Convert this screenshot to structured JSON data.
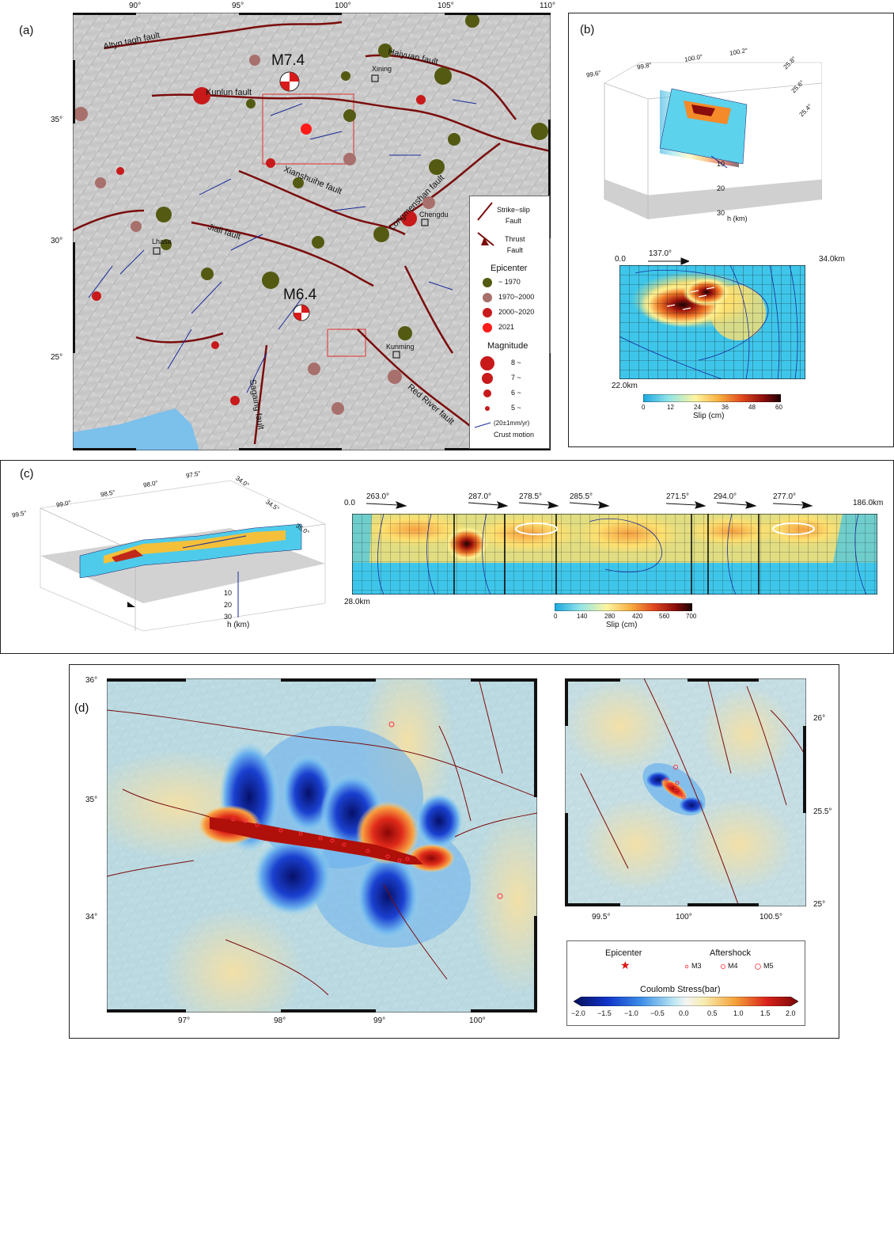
{
  "panel_a": {
    "label": "(a)",
    "lon_ticks": [
      "90°",
      "95°",
      "100°",
      "105°",
      "110°"
    ],
    "lat_ticks": [
      "35°",
      "30°",
      "25°"
    ],
    "events": [
      "M7.4",
      "M6.4"
    ],
    "faults": [
      "Altyn tagh fault",
      "Kunlun fault",
      "Haiyuan fault",
      "Xianshuihe fault",
      "Longmenshan fault",
      "Jiali fault",
      "Sagaing fault",
      "Red River fault"
    ],
    "cities": [
      "Xining",
      "Chengdu",
      "Lhasa",
      "Kunming"
    ],
    "legend": {
      "strike_slip": [
        "Strike−slip",
        "Fault"
      ],
      "thrust": [
        "Thrust",
        "Fault"
      ],
      "epicenter_title": "Epicenter",
      "epicenter_items": [
        "~ 1970",
        "1970~2000",
        "2000~2020",
        "2021"
      ],
      "epicenter_colors": [
        "#545a12",
        "#a8706c",
        "#c81a1a",
        "#ff1a1a"
      ],
      "magnitude_title": "Magnitude",
      "magnitude_items": [
        "8 ~",
        "7 ~",
        "6 ~",
        "5 ~"
      ],
      "crust": [
        "(20±1mm/yr)",
        "Crust motion"
      ]
    }
  },
  "panel_b": {
    "label": "(b)",
    "box_lon": [
      "99.6°",
      "99.8°",
      "100.0°",
      "100.2°"
    ],
    "box_lat": [
      "25.8°",
      "25.6°",
      "25.4°"
    ],
    "depth_ticks": [
      "10",
      "20",
      "30"
    ],
    "depth_label": "h (km)",
    "strike": "137.0°",
    "start": "0.0",
    "length": "34.0km",
    "width": "22.0km",
    "colorbar_ticks": [
      "0",
      "12",
      "24",
      "36",
      "48",
      "60"
    ],
    "colorbar_label": "Slip (cm)"
  },
  "panel_c": {
    "label": "(c)",
    "box_lon": [
      "99.5°",
      "99.0°",
      "98.5°",
      "98.0°",
      "97.5°"
    ],
    "box_lat": [
      "34.0°",
      "34.5°",
      "35.0°"
    ],
    "depth_ticks": [
      "10",
      "20",
      "30"
    ],
    "depth_label": "h (km)",
    "strikes": [
      "263.0°",
      "287.0°",
      "278.5°",
      "285.5°",
      "271.5°",
      "294.0°",
      "277.0°"
    ],
    "start": "0.0",
    "length": "186.0km",
    "width": "28.0km",
    "colorbar_ticks": [
      "0",
      "140",
      "280",
      "420",
      "560",
      "700"
    ],
    "colorbar_label": "Slip (cm)"
  },
  "panel_d": {
    "label": "(d)",
    "lat_ticks_left": [
      "36°",
      "35°",
      "34°"
    ],
    "lon_ticks_left": [
      "97°",
      "98°",
      "99°",
      "100°"
    ],
    "lat_ticks_right": [
      "26°",
      "25.5°",
      "25°"
    ],
    "lon_ticks_right": [
      "99.5°",
      "100°",
      "100.5°"
    ],
    "legend": {
      "epicenter": "Epicenter",
      "aftershock": "Aftershock",
      "mags": [
        "M3",
        "M4",
        "M5"
      ],
      "colorbar_title": "Coulomb Stress(bar)",
      "colorbar_ticks": [
        "−2.0",
        "−1.5",
        "−1.0",
        "−0.5",
        "0.0",
        "0.5",
        "1.0",
        "1.5",
        "2.0"
      ]
    }
  },
  "colors": {
    "fault": "#7a0c0c",
    "arrow": "#1a2a9a",
    "water": "#7cc0ec",
    "frame": "#222222"
  }
}
